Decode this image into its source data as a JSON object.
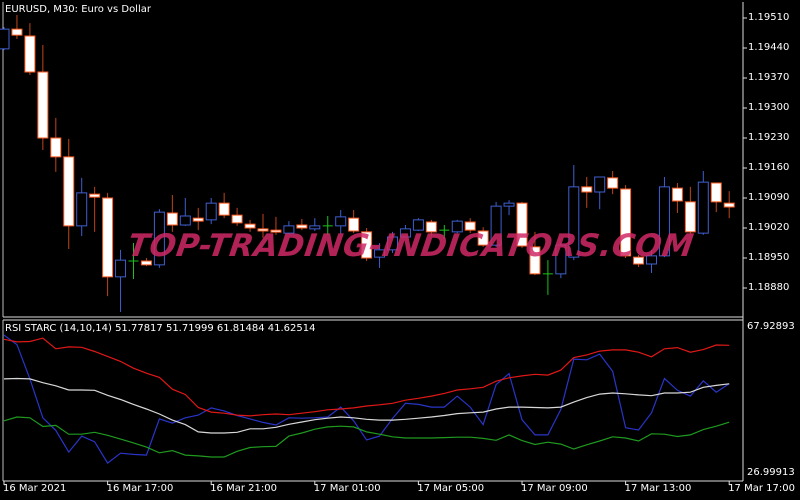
{
  "main_panel": {
    "title": "EURUSD, M30:  Euro vs  Dollar",
    "symbol": "EURUSD",
    "timeframe": "M30",
    "price_ticks": [
      "1.19510",
      "1.19440",
      "1.19370",
      "1.19300",
      "1.19230",
      "1.19160",
      "1.19090",
      "1.19020",
      "1.18950",
      "1.18880"
    ],
    "colors": {
      "bear_body": "#ffffff",
      "bear_outline": "#ff5a1f",
      "bear_wick": "#c0451a",
      "bull_outline": "#3f5fd0",
      "doji": "#19c419",
      "background": "#000000"
    },
    "candles": [
      [
        1.19438,
        1.19489,
        1.19435,
        1.19484
      ],
      [
        1.19484,
        1.19517,
        1.19461,
        1.1947
      ],
      [
        1.19468,
        1.19498,
        1.19377,
        1.19384
      ],
      [
        1.19384,
        1.19447,
        1.19202,
        1.1923
      ],
      [
        1.1923,
        1.19277,
        1.19151,
        1.19186
      ],
      [
        1.19186,
        1.19228,
        1.18971,
        1.19025
      ],
      [
        1.19025,
        1.19137,
        1.19001,
        1.19102
      ],
      [
        1.19099,
        1.19116,
        1.19011,
        1.19092
      ],
      [
        1.1909,
        1.19102,
        1.18861,
        1.18906
      ],
      [
        1.18906,
        1.18969,
        1.18824,
        1.18945
      ],
      [
        1.18943,
        1.18985,
        1.18901,
        1.18943
      ],
      [
        1.18943,
        1.1895,
        1.18931,
        1.18934
      ],
      [
        1.18934,
        1.19064,
        1.18927,
        1.19057
      ],
      [
        1.19055,
        1.19097,
        1.19011,
        1.19027
      ],
      [
        1.19027,
        1.1909,
        1.19025,
        1.19048
      ],
      [
        1.19043,
        1.19067,
        1.19015,
        1.19036
      ],
      [
        1.19039,
        1.1909,
        1.19029,
        1.19078
      ],
      [
        1.19078,
        1.19102,
        1.19043,
        1.1905
      ],
      [
        1.1905,
        1.19067,
        1.19025,
        1.19032
      ],
      [
        1.19029,
        1.19039,
        1.19011,
        1.1902
      ],
      [
        1.19018,
        1.19053,
        1.18997,
        1.19013
      ],
      [
        1.19015,
        1.19046,
        1.19004,
        1.19011
      ],
      [
        1.19008,
        1.19036,
        1.19006,
        1.19025
      ],
      [
        1.19027,
        1.19041,
        1.19015,
        1.1902
      ],
      [
        1.19018,
        1.19043,
        1.19013,
        1.19025
      ],
      [
        1.19025,
        1.19048,
        1.19004,
        1.19025
      ],
      [
        1.19025,
        1.19062,
        1.19006,
        1.19046
      ],
      [
        1.19043,
        1.19062,
        1.19008,
        1.19013
      ],
      [
        1.19011,
        1.1902,
        1.18943,
        1.1895
      ],
      [
        1.18952,
        1.18985,
        1.18927,
        1.18969
      ],
      [
        1.18969,
        1.19011,
        1.18962,
        1.18999
      ],
      [
        1.18999,
        1.19027,
        1.18999,
        1.19018
      ],
      [
        1.19015,
        1.19043,
        1.19013,
        1.19039
      ],
      [
        1.19034,
        1.19039,
        1.19001,
        1.19011
      ],
      [
        1.19015,
        1.19027,
        1.18994,
        1.19015
      ],
      [
        1.19011,
        1.19039,
        1.19008,
        1.19036
      ],
      [
        1.19034,
        1.19043,
        1.19008,
        1.19015
      ],
      [
        1.19013,
        1.19022,
        1.18976,
        1.1898
      ],
      [
        1.1898,
        1.19081,
        1.18976,
        1.19071
      ],
      [
        1.19071,
        1.19085,
        1.1905,
        1.19078
      ],
      [
        1.19078,
        1.19081,
        1.18973,
        1.18978
      ],
      [
        1.18976,
        1.19011,
        1.1891,
        1.18913
      ],
      [
        1.18913,
        1.18945,
        1.18864,
        1.18913
      ],
      [
        1.18913,
        1.18985,
        1.18903,
        1.1898
      ],
      [
        1.18952,
        1.19167,
        1.18945,
        1.19116
      ],
      [
        1.19116,
        1.19139,
        1.19067,
        1.19104
      ],
      [
        1.19104,
        1.19139,
        1.19064,
        1.19139
      ],
      [
        1.19137,
        1.19153,
        1.19099,
        1.19113
      ],
      [
        1.19111,
        1.1912,
        1.1895,
        1.18955
      ],
      [
        1.18952,
        1.18957,
        1.18929,
        1.18936
      ],
      [
        1.18936,
        1.18969,
        1.18915,
        1.18955
      ],
      [
        1.18955,
        1.19139,
        1.18952,
        1.19116
      ],
      [
        1.19113,
        1.19125,
        1.19055,
        1.19083
      ],
      [
        1.19081,
        1.19116,
        1.19006,
        1.19011
      ],
      [
        1.19008,
        1.19153,
        1.19004,
        1.19127
      ],
      [
        1.19125,
        1.19125,
        1.19057,
        1.19081
      ],
      [
        1.19078,
        1.19106,
        1.19043,
        1.19069
      ]
    ]
  },
  "indicator_panel": {
    "legend": "RSI STARC (14,10,14) 51.77817 51.71999 61.81484 41.62514",
    "max_label": "67.92893",
    "min_label": "26.99913",
    "series": [
      {
        "color": "#2a35c8",
        "values": [
          64.5,
          62.0,
          53.0,
          42.8,
          39.5,
          33.8,
          38.0,
          36.5,
          30.9,
          33.5,
          33.2,
          33.0,
          42.5,
          41.4,
          42.8,
          43.5,
          45.4,
          44.6,
          43.4,
          42.5,
          41.6,
          40.9,
          42.8,
          42.7,
          42.8,
          43.0,
          45.6,
          42.0,
          37.0,
          38.0,
          42.6,
          46.6,
          46.3,
          45.6,
          45.6,
          48.5,
          45.6,
          41.0,
          51.5,
          54.4,
          42.3,
          38.3,
          38.3,
          45.0,
          58.2,
          58.0,
          59.5,
          55.0,
          40.2,
          39.6,
          44.1,
          53.1,
          50.0,
          48.5,
          52.5,
          49.5,
          51.78
        ]
      },
      {
        "color": "#d8d8d8",
        "values": [
          53.0,
          53.1,
          53.0,
          52.0,
          51.2,
          50.1,
          50.1,
          50.0,
          48.7,
          47.6,
          46.3,
          45.1,
          43.8,
          42.2,
          41.0,
          39.1,
          38.8,
          38.8,
          39.0,
          39.9,
          39.9,
          40.3,
          41.1,
          41.7,
          42.3,
          42.7,
          43.0,
          42.8,
          42.4,
          42.2,
          42.2,
          42.4,
          42.7,
          43.0,
          43.4,
          43.9,
          44.1,
          44.3,
          45.1,
          45.6,
          45.6,
          45.5,
          45.4,
          45.6,
          46.9,
          48.1,
          49.0,
          49.3,
          49.1,
          48.8,
          48.6,
          49.3,
          49.3,
          49.5,
          50.8,
          51.3,
          51.72
        ]
      },
      {
        "color": "#e01818",
        "values": [
          63.4,
          62.7,
          62.8,
          63.7,
          60.9,
          61.4,
          61.3,
          60.2,
          58.9,
          57.6,
          55.8,
          54.5,
          53.4,
          50.3,
          48.9,
          45.5,
          44.3,
          44.0,
          43.5,
          43.3,
          43.6,
          43.8,
          43.6,
          44.0,
          44.4,
          44.9,
          45.1,
          45.4,
          45.9,
          46.2,
          46.6,
          47.4,
          47.9,
          48.5,
          49.2,
          50.1,
          50.4,
          50.8,
          52.4,
          53.3,
          53.8,
          54.2,
          54.0,
          55.3,
          58.6,
          59.3,
          60.3,
          60.6,
          60.6,
          60.0,
          58.8,
          60.9,
          61.2,
          60.0,
          60.7,
          61.9,
          61.81
        ]
      },
      {
        "color": "#1f9a1f",
        "values": [
          42.0,
          43.0,
          42.8,
          40.5,
          40.8,
          38.5,
          38.5,
          39.0,
          38.2,
          37.2,
          36.2,
          35.1,
          33.6,
          34.2,
          33.0,
          32.8,
          32.5,
          32.5,
          34.0,
          35.0,
          35.2,
          35.3,
          38.0,
          38.8,
          39.8,
          40.4,
          40.6,
          40.4,
          39.1,
          38.5,
          37.8,
          37.5,
          37.5,
          37.5,
          37.6,
          37.7,
          37.7,
          37.4,
          36.9,
          38.3,
          36.8,
          35.8,
          36.4,
          35.9,
          34.6,
          35.7,
          36.7,
          37.8,
          37.5,
          36.7,
          38.6,
          38.5,
          37.9,
          38.3,
          39.7,
          40.6,
          41.63
        ]
      }
    ]
  },
  "time_axis": {
    "labels": [
      "16 Mar 2021",
      "16 Mar 17:00",
      "16 Mar 21:00",
      "17 Mar 01:00",
      "17 Mar 05:00",
      "17 Mar 09:00",
      "17 Mar 13:00",
      "17 Mar 17:00"
    ],
    "bars_per_label": 8
  },
  "watermark": "TOP-TRADING-INDICATORS.COM"
}
